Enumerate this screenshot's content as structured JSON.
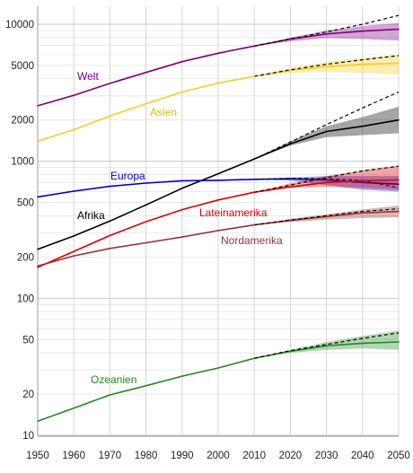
{
  "chart_data": {
    "type": "line",
    "title": "",
    "xlabel": "",
    "ylabel": "",
    "yscale": "log",
    "xlim": [
      1950,
      2050
    ],
    "ylim": [
      10,
      12000
    ],
    "grid": true,
    "legend": "inline labels",
    "x_ticks": [
      "1950",
      "1960",
      "1970",
      "1980",
      "1990",
      "2000",
      "2010",
      "2020",
      "2030",
      "2040",
      "2050"
    ],
    "y_ticks": [
      "10",
      "20",
      "50",
      "100",
      "200",
      "500",
      "1000",
      "2000",
      "5000",
      "10000"
    ],
    "x": [
      1950,
      1960,
      1970,
      1980,
      1990,
      2000,
      2010,
      2020,
      2030,
      2040,
      2050
    ],
    "series": [
      {
        "name": "Welt",
        "color": "#800080",
        "values": [
          2540,
          3030,
          3700,
          4450,
          5330,
          6140,
          6930,
          7790,
          8500,
          8900,
          9200
        ],
        "projection_high": [
          null,
          null,
          null,
          null,
          null,
          null,
          6930,
          7800,
          8800,
          10000,
          11600
        ],
        "band_low": [
          null,
          null,
          null,
          null,
          null,
          null,
          6930,
          7500,
          7900,
          7800,
          7600
        ],
        "band_high": [
          null,
          null,
          null,
          null,
          null,
          null,
          6930,
          8000,
          9000,
          9700,
          10200
        ]
      },
      {
        "name": "Asien",
        "color": "#f0d020",
        "values": [
          1400,
          1700,
          2140,
          2630,
          3200,
          3720,
          4170,
          4600,
          4900,
          5100,
          5200
        ],
        "projection_high": [
          null,
          null,
          null,
          null,
          null,
          null,
          4170,
          4650,
          5100,
          5500,
          5900
        ],
        "band_low": [
          null,
          null,
          null,
          null,
          null,
          null,
          4170,
          4400,
          4500,
          4400,
          4300
        ],
        "band_high": [
          null,
          null,
          null,
          null,
          null,
          null,
          4170,
          4800,
          5300,
          5700,
          6000
        ]
      },
      {
        "name": "Afrika",
        "color": "#000000",
        "values": [
          228,
          285,
          366,
          480,
          635,
          810,
          1040,
          1340,
          1650,
          1800,
          2000
        ],
        "projection_high": [
          null,
          null,
          null,
          null,
          null,
          null,
          1040,
          1380,
          1850,
          2450,
          3200
        ],
        "band_low": [
          null,
          null,
          null,
          null,
          null,
          null,
          1040,
          1300,
          1500,
          1550,
          1600
        ],
        "band_high": [
          null,
          null,
          null,
          null,
          null,
          null,
          1040,
          1400,
          1800,
          2100,
          2500
        ]
      },
      {
        "name": "Europa",
        "color": "#0000cc",
        "values": [
          549,
          605,
          656,
          693,
          720,
          726,
          738,
          745,
          730,
          700,
          680
        ],
        "projection_high": [
          null,
          null,
          null,
          null,
          null,
          null,
          738,
          750,
          745,
          725,
          640
        ],
        "band_low": [
          null,
          null,
          null,
          null,
          null,
          null,
          738,
          720,
          670,
          620,
          600
        ],
        "band_high": [
          null,
          null,
          null,
          null,
          null,
          null,
          738,
          760,
          780,
          780,
          780
        ]
      },
      {
        "name": "Lateinamerika",
        "color": "#dd0000",
        "values": [
          168,
          220,
          287,
          362,
          443,
          522,
          594,
          650,
          700,
          720,
          730
        ],
        "projection_high": [
          null,
          null,
          null,
          null,
          null,
          null,
          594,
          670,
          760,
          850,
          920
        ],
        "band_low": [
          null,
          null,
          null,
          null,
          null,
          null,
          594,
          640,
          650,
          640,
          620
        ],
        "band_high": [
          null,
          null,
          null,
          null,
          null,
          null,
          594,
          690,
          780,
          860,
          930
        ]
      },
      {
        "name": "Nordamerika",
        "color": "#993333",
        "values": [
          172,
          204,
          231,
          254,
          280,
          312,
          343,
          370,
          395,
          420,
          430
        ],
        "projection_high": [
          null,
          null,
          null,
          null,
          null,
          null,
          343,
          372,
          400,
          430,
          450
        ],
        "band_low": [
          null,
          null,
          null,
          null,
          null,
          null,
          343,
          360,
          375,
          385,
          390
        ],
        "band_high": [
          null,
          null,
          null,
          null,
          null,
          null,
          343,
          380,
          410,
          445,
          475
        ]
      },
      {
        "name": "Ozeanien",
        "color": "#228822",
        "values": [
          12.7,
          15.8,
          19.7,
          23,
          27,
          31,
          36.5,
          41,
          45,
          47,
          48
        ],
        "projection_high": [
          null,
          null,
          null,
          null,
          null,
          null,
          36.5,
          41.5,
          46,
          51,
          56
        ],
        "band_low": [
          null,
          null,
          null,
          null,
          null,
          null,
          36.5,
          40,
          42,
          43,
          42
        ],
        "band_high": [
          null,
          null,
          null,
          null,
          null,
          null,
          36.5,
          42,
          48,
          53,
          58
        ]
      }
    ]
  }
}
